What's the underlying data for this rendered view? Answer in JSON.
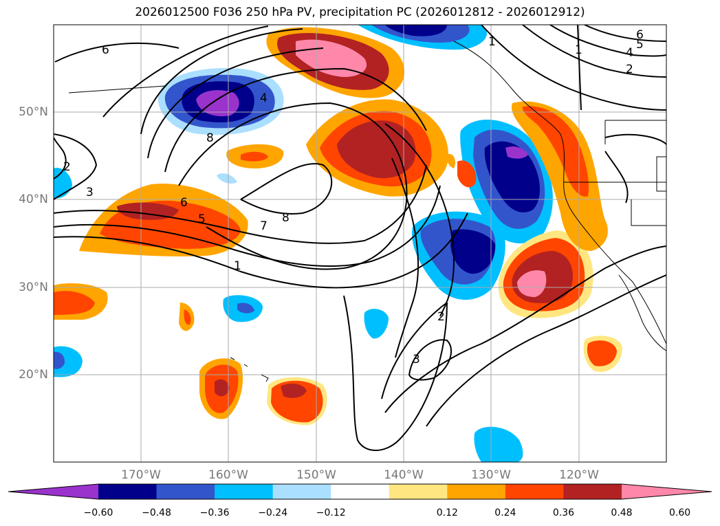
{
  "title": "2026012500 F036 250 hPa PV, precipitation PC (2026012812 - 2026012912)",
  "lon_labels": [
    "170°W",
    "160°W",
    "150°W",
    "140°W",
    "130°W",
    "120°W"
  ],
  "lat_labels": [
    "50°N",
    "40°N",
    "30°N",
    "20°N"
  ],
  "colorbar": {
    "ticks": [
      "−0.60",
      "−0.48",
      "−0.36",
      "−0.24",
      "−0.12",
      "0.12",
      "0.24",
      "0.36",
      "0.48",
      "0.60"
    ],
    "colors": [
      "#9933cc",
      "#00008b",
      "#3355cc",
      "#00bfff",
      "#aadfff",
      "#ffffff",
      "#ffe680",
      "#ffa500",
      "#ff4500",
      "#b22222",
      "#ff88aa"
    ]
  },
  "contour_labels": [
    "6",
    "4",
    "1",
    "2",
    "3",
    "8",
    "5",
    "7",
    "1",
    "2",
    "3",
    "6",
    "4",
    "5",
    "1",
    "2"
  ]
}
